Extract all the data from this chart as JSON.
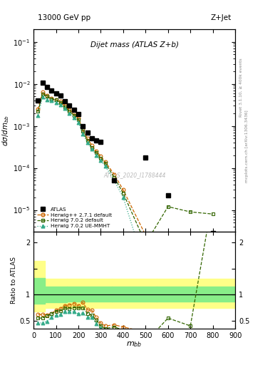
{
  "title_left": "13000 GeV pp",
  "title_right": "Z+Jet",
  "plot_title": "Dijet mass (ATLAS Z+b)",
  "ylabel_main": "dσ/dm_{bb}",
  "ylabel_ratio": "Ratio to ATLAS",
  "watermark": "ATLAS_2020_I1788444",
  "right_label_top": "Rivet 3.1.10, ≥ 400k events",
  "right_label_bottom": "mcplots.cern.ch [arXiv:1306.3436]",
  "atlas_x": [
    20,
    40,
    60,
    80,
    100,
    120,
    140,
    160,
    180,
    200,
    220,
    240,
    260,
    280,
    300,
    360,
    500,
    600,
    800
  ],
  "atlas_y": [
    0.004,
    0.0105,
    0.0085,
    0.007,
    0.006,
    0.0052,
    0.0038,
    0.003,
    0.0024,
    0.0019,
    0.001,
    0.0007,
    0.0005,
    0.00045,
    0.00042,
    5e-05,
    0.00018,
    2.2e-05,
    2.8e-06
  ],
  "hpp_x": [
    20,
    40,
    60,
    80,
    100,
    120,
    140,
    160,
    180,
    200,
    220,
    240,
    260,
    280,
    300,
    320,
    360,
    400,
    500
  ],
  "hpp_y": [
    0.0025,
    0.0065,
    0.0052,
    0.0045,
    0.0042,
    0.0038,
    0.003,
    0.0024,
    0.002,
    0.0015,
    0.00085,
    0.0005,
    0.00035,
    0.00025,
    0.00019,
    0.00014,
    7e-05,
    3e-05,
    2.5e-06
  ],
  "h702_x": [
    20,
    40,
    60,
    80,
    100,
    120,
    140,
    160,
    180,
    200,
    220,
    240,
    260,
    280,
    300,
    320,
    360,
    400,
    500,
    600,
    700,
    800
  ],
  "h702_y": [
    0.0022,
    0.0058,
    0.005,
    0.0044,
    0.0041,
    0.0036,
    0.0028,
    0.0022,
    0.0018,
    0.0014,
    0.00075,
    0.00045,
    0.0003,
    0.00023,
    0.00017,
    0.00013,
    6e-05,
    2.5e-05,
    1.6e-06,
    1.2e-05,
    9e-06,
    8e-06
  ],
  "h702ue_x": [
    20,
    40,
    60,
    80,
    100,
    120,
    140,
    160,
    180,
    200,
    220,
    240,
    260,
    280,
    300,
    320,
    360,
    400,
    500
  ],
  "h702ue_y": [
    0.0018,
    0.0048,
    0.0042,
    0.004,
    0.0036,
    0.0032,
    0.0026,
    0.002,
    0.0016,
    0.0012,
    0.00065,
    0.0004,
    0.00028,
    0.0002,
    0.00015,
    0.00011,
    5e-05,
    2e-05,
    4e-07
  ],
  "ratio_hpp_x": [
    20,
    40,
    60,
    80,
    100,
    120,
    140,
    160,
    180,
    200,
    220,
    240,
    260,
    280,
    300,
    320,
    360,
    400,
    500
  ],
  "ratio_hpp_y": [
    0.62,
    0.62,
    0.61,
    0.64,
    0.7,
    0.73,
    0.79,
    0.8,
    0.83,
    0.79,
    0.85,
    0.71,
    0.7,
    0.56,
    0.45,
    0.4,
    0.42,
    0.38,
    0.28
  ],
  "ratio_h702_x": [
    20,
    40,
    60,
    80,
    100,
    120,
    140,
    160,
    180,
    200,
    220,
    240,
    260,
    280,
    300,
    320,
    360,
    400,
    500,
    600,
    700,
    800
  ],
  "ratio_h702_y": [
    0.55,
    0.55,
    0.59,
    0.63,
    0.68,
    0.69,
    0.74,
    0.73,
    0.75,
    0.74,
    0.75,
    0.64,
    0.6,
    0.51,
    0.4,
    0.35,
    0.38,
    0.32,
    0.089,
    0.55,
    0.4,
    2.86
  ],
  "ratio_h702ue_x": [
    20,
    40,
    60,
    80,
    100,
    120,
    140,
    160,
    180,
    200,
    220,
    240,
    260,
    280,
    300,
    320,
    360,
    400,
    500
  ],
  "ratio_h702ue_y": [
    0.45,
    0.46,
    0.49,
    0.57,
    0.6,
    0.62,
    0.68,
    0.67,
    0.67,
    0.63,
    0.65,
    0.57,
    0.56,
    0.44,
    0.36,
    0.31,
    0.3,
    0.25,
    0.022
  ],
  "color_atlas": "#000000",
  "color_hpp": "#cc6600",
  "color_h702": "#336600",
  "color_h702ue": "#33aa88",
  "ylim_main": [
    3e-06,
    0.2
  ],
  "ylim_ratio": [
    0.35,
    2.2
  ],
  "xlim": [
    0,
    900
  ]
}
